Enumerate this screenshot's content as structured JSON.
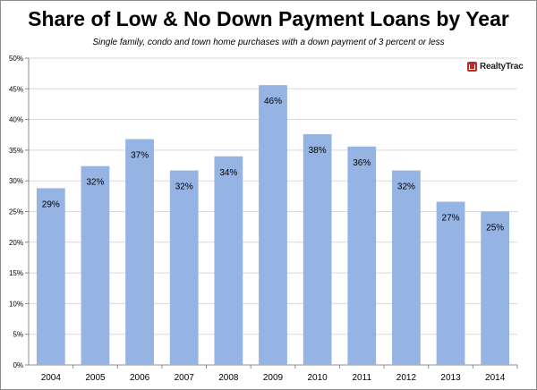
{
  "chart_data": {
    "type": "bar",
    "title": "Share of Low & No Down Payment Loans by Year",
    "subtitle": "Single family, condo and town home purchases with a down payment of 3 percent or less",
    "categories": [
      "2004",
      "2005",
      "2006",
      "2007",
      "2008",
      "2009",
      "2010",
      "2011",
      "2012",
      "2013",
      "2014"
    ],
    "values": [
      28.8,
      32.4,
      36.8,
      31.7,
      34.0,
      45.6,
      37.6,
      35.6,
      31.7,
      26.6,
      25.0
    ],
    "data_labels": [
      "29%",
      "32%",
      "37%",
      "32%",
      "34%",
      "46%",
      "38%",
      "36%",
      "32%",
      "27%",
      "25%"
    ],
    "ylim": [
      0,
      50
    ],
    "yticks": [
      0,
      5,
      10,
      15,
      20,
      25,
      30,
      35,
      40,
      45,
      50
    ],
    "ytick_labels": [
      "0%",
      "5%",
      "10%",
      "15%",
      "20%",
      "25%",
      "30%",
      "35%",
      "40%",
      "45%",
      "50%"
    ],
    "grid": true,
    "bar_color": "#95b3e3",
    "grid_color": "#d9d9d9",
    "xlabel": "",
    "ylabel": ""
  },
  "logo": {
    "text": "RealtyTrac",
    "color": "#c62828"
  }
}
